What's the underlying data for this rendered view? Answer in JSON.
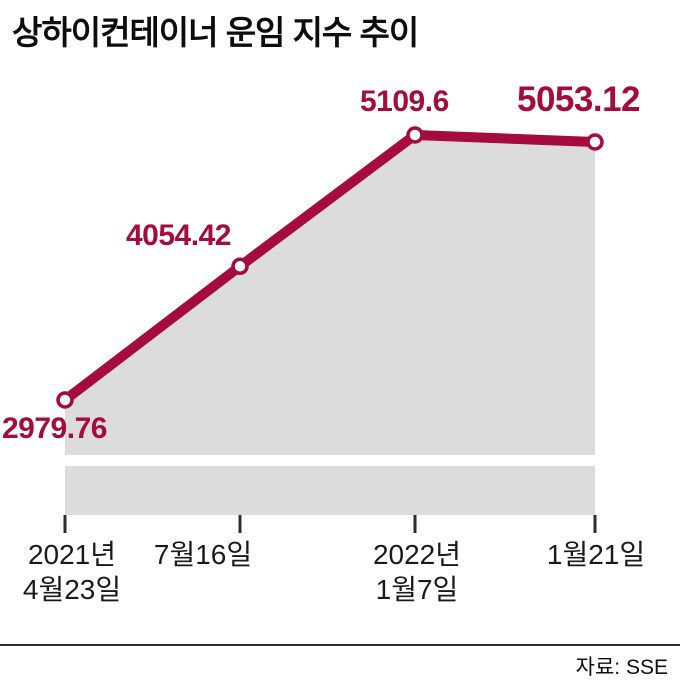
{
  "title": "상하이컨테이너 운임 지수 추이",
  "source": "자료: SSE",
  "colors": {
    "accent": "#a50b3c",
    "area_gray": "#dcdcdc",
    "text": "#111111"
  },
  "chart_data": {
    "type": "line",
    "title": "상하이컨테이너 운임 지수 추이",
    "x": [
      "2021년 4월23일",
      "2021년 7월16일",
      "2022년 1월7일",
      "2022년 1월21일"
    ],
    "values": [
      2979.76,
      4054.42,
      5109.6,
      5053.12
    ],
    "point_labels": [
      "2979.76",
      "4054.42",
      "5109.6",
      "5053.12"
    ],
    "x_ticks": [
      {
        "lines": [
          "2021년",
          "4월23일"
        ]
      },
      {
        "lines": [
          "7월16일"
        ]
      },
      {
        "lines": [
          "2022년",
          "1월7일"
        ]
      },
      {
        "lines": [
          "1월21일"
        ]
      }
    ],
    "ylim": [
      2800,
      5300
    ],
    "grid": false,
    "legend": false,
    "source": "자료: SSE",
    "line_color": "#a50b3c",
    "area_color": "#dcdcdc"
  }
}
